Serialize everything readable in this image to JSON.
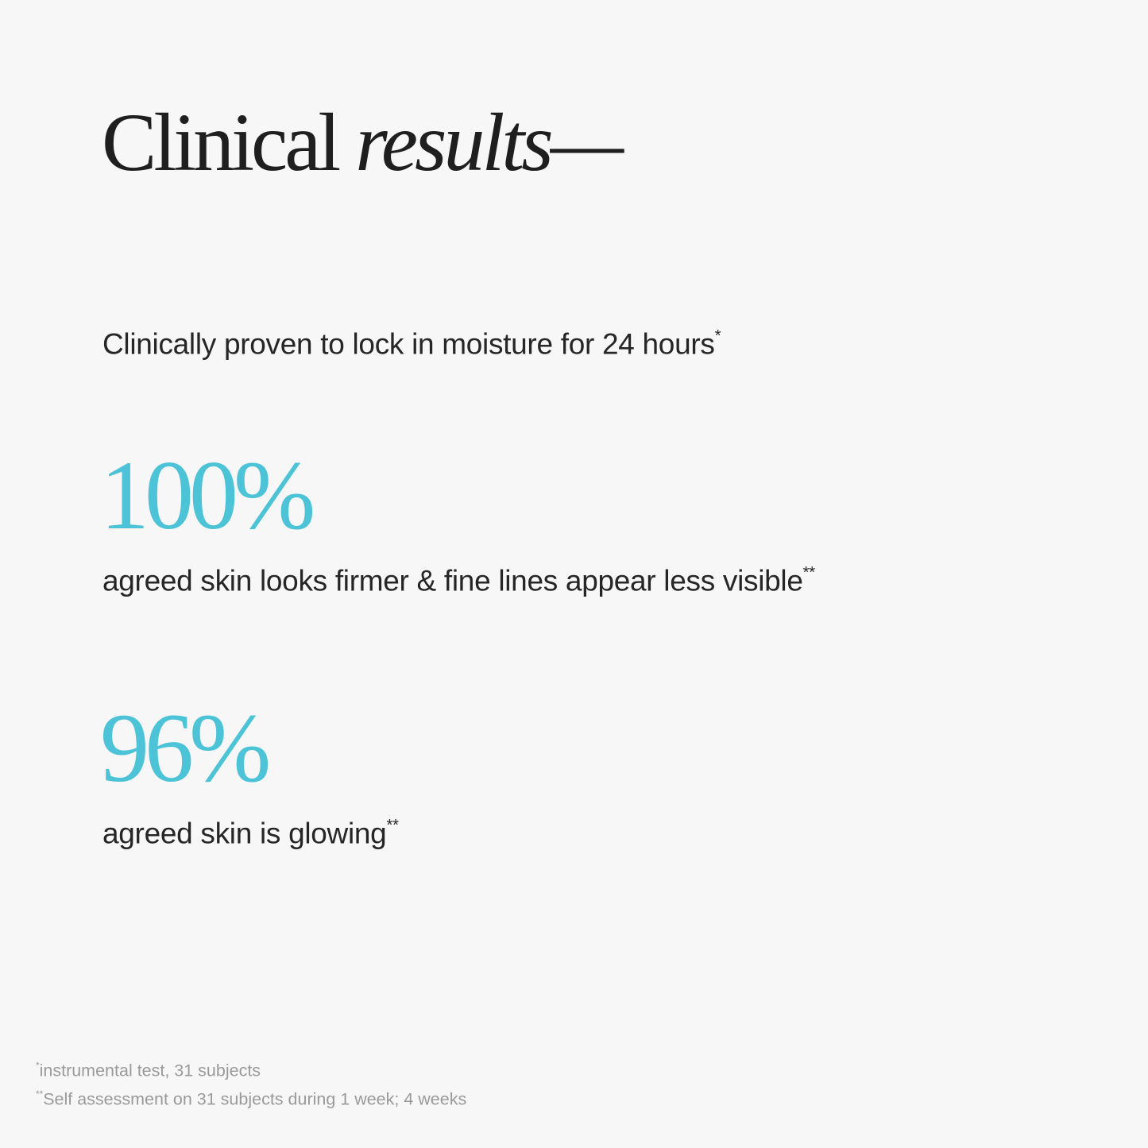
{
  "title": {
    "regular": "Clinical",
    "italic": "results—"
  },
  "claim": {
    "text": "Clinically proven to lock in moisture for 24 hours",
    "mark": "*"
  },
  "stats": [
    {
      "value": "100%",
      "label": "agreed skin looks firmer & fine lines appear less visible",
      "mark": "**"
    },
    {
      "value": "96%",
      "label": "agreed skin is glowing",
      "mark": "**"
    }
  ],
  "footnotes": [
    {
      "mark": "*",
      "text": "instrumental test, 31 subjects"
    },
    {
      "mark": "**",
      "text": "Self assessment on 31 subjects during 1 week; 4 weeks"
    }
  ],
  "colors": {
    "accent": "#4cc3d6",
    "background": "#f7f7f7",
    "text": "#222222",
    "footnote": "#9a9a9a"
  }
}
